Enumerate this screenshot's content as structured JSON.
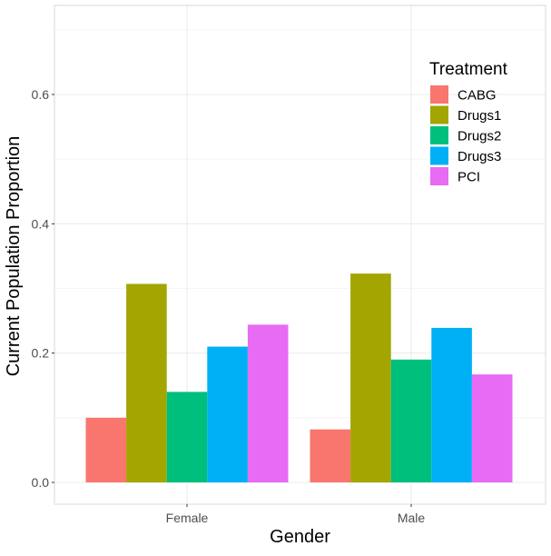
{
  "chart_data": {
    "type": "bar",
    "title": "",
    "xlabel": "Gender",
    "ylabel": "Current Population Proportion",
    "categories": [
      "Female",
      "Male"
    ],
    "series": [
      {
        "name": "CABG",
        "color": "#F8766D",
        "values": [
          0.1,
          0.082
        ]
      },
      {
        "name": "Drugs1",
        "color": "#A3A500",
        "values": [
          0.307,
          0.323
        ]
      },
      {
        "name": "Drugs2",
        "color": "#00BF7D",
        "values": [
          0.14,
          0.19
        ]
      },
      {
        "name": "Drugs3",
        "color": "#00B0F6",
        "values": [
          0.21,
          0.239
        ]
      },
      {
        "name": "PCI",
        "color": "#E76BF3",
        "values": [
          0.244,
          0.167
        ]
      }
    ],
    "ylim": [
      0,
      0.72
    ],
    "yticks": [
      0.0,
      0.2,
      0.4,
      0.6
    ],
    "ytick_labels": [
      "0.0",
      "0.2",
      "0.4",
      "0.6"
    ],
    "grid": true,
    "legend": {
      "title": "Treatment",
      "position": "top-right"
    }
  }
}
